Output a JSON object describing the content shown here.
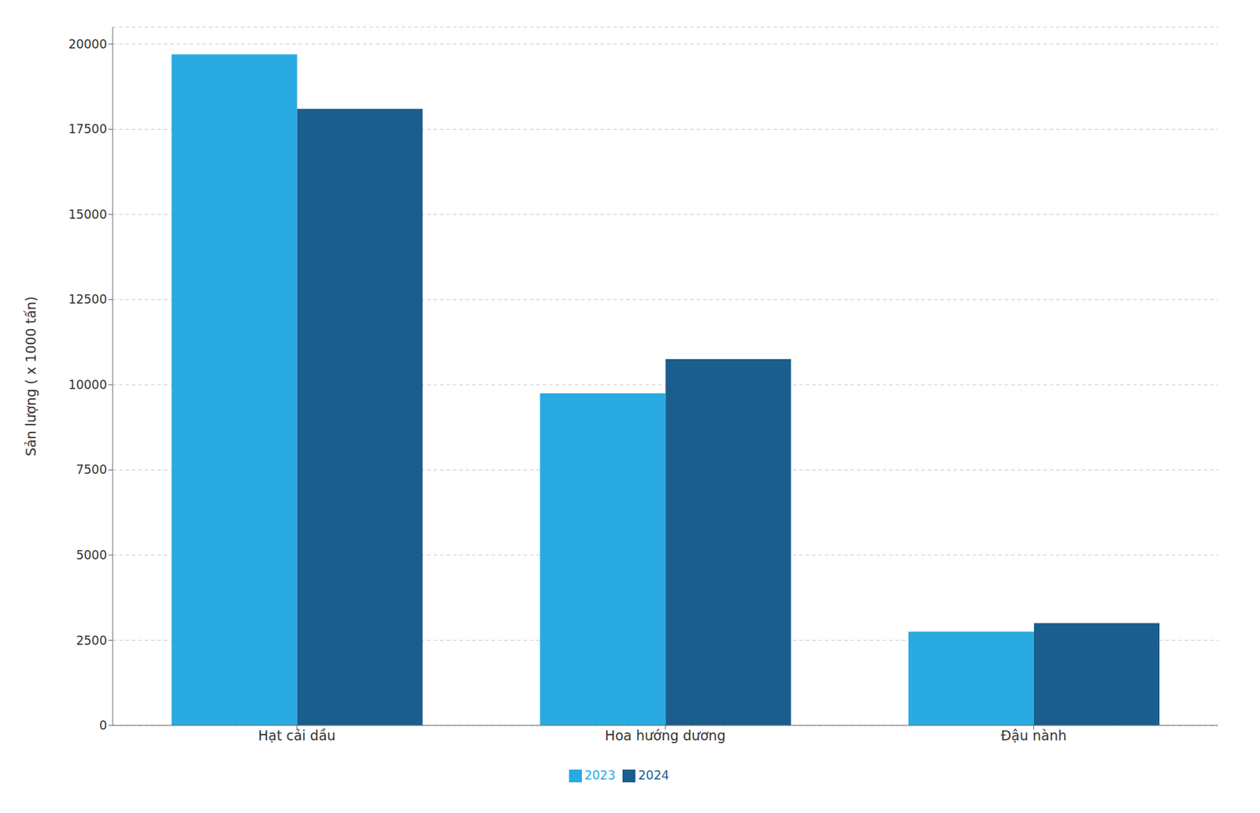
{
  "chart_data": {
    "type": "bar",
    "categories": [
      "Hạt cải dầu",
      "Hoa hướng dương",
      "Đậu nành"
    ],
    "series": [
      {
        "name": "2023",
        "color": "#29aae1",
        "values": [
          19700,
          9750,
          2750
        ]
      },
      {
        "name": "2024",
        "color": "#1b5e8e",
        "values": [
          18100,
          10750,
          3000
        ]
      }
    ],
    "ylabel": "Sản lượng ( x 1000 tấn)",
    "ylim": [
      0,
      20500
    ],
    "yticks": [
      0,
      2500,
      5000,
      7500,
      10000,
      12500,
      15000,
      17500,
      20000
    ],
    "grid": true,
    "legend": "bottom"
  }
}
